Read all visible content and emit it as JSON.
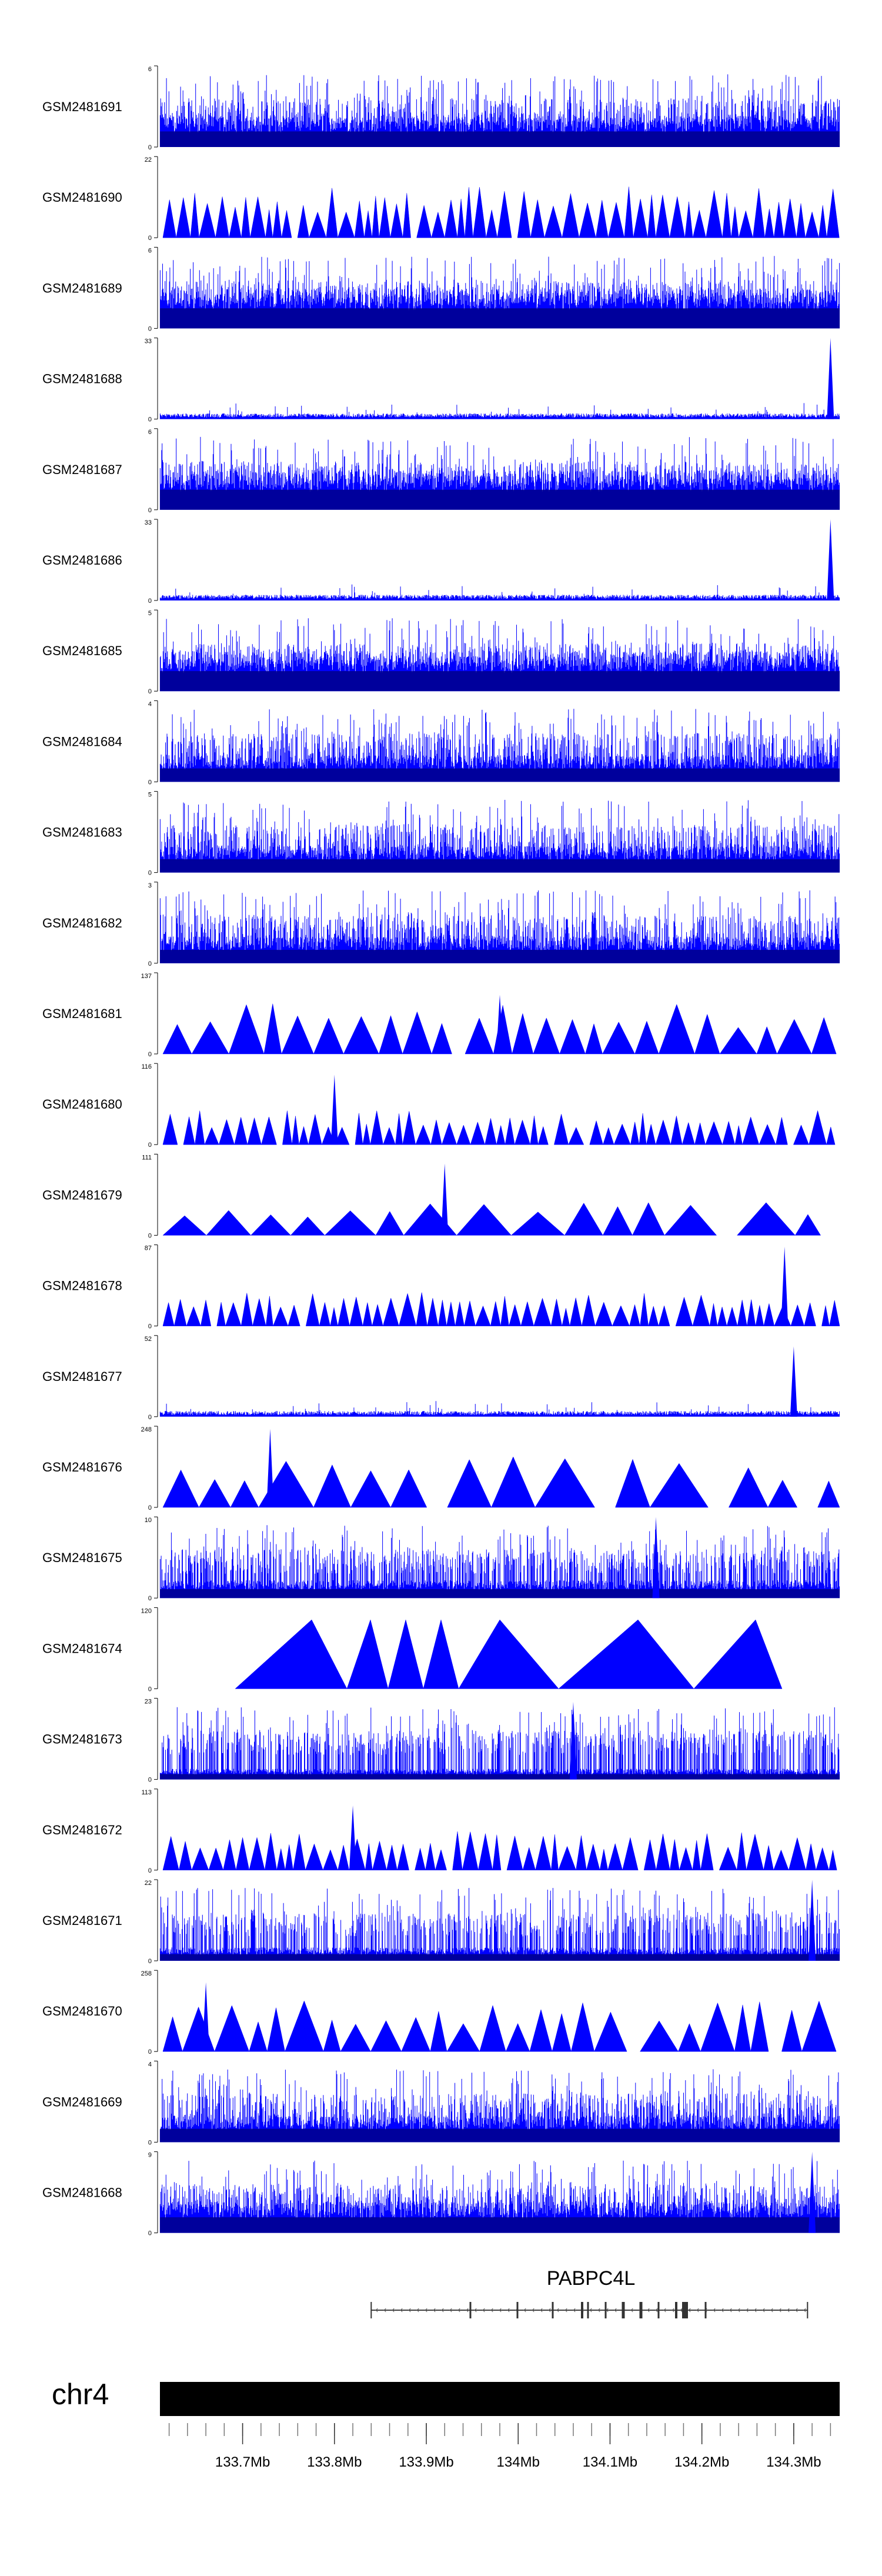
{
  "chart_data": {
    "type": "area",
    "x_range_bp": [
      133610000,
      134350000
    ],
    "tracks": [
      {
        "name": "GSM2481691",
        "ymax": 6,
        "style": "spiky",
        "base": 0.35,
        "peak": null
      },
      {
        "name": "GSM2481690",
        "ymax": 22,
        "style": "tri-dense",
        "base": 0.45,
        "peak": null
      },
      {
        "name": "GSM2481689",
        "ymax": 6,
        "style": "spiky",
        "base": 0.45,
        "peak": null
      },
      {
        "name": "GSM2481688",
        "ymax": 33,
        "style": "low",
        "base": 0.06,
        "peak": {
          "x_bp": 134340000,
          "value": 33
        }
      },
      {
        "name": "GSM2481687",
        "ymax": 6,
        "style": "spiky",
        "base": 0.45,
        "peak": null
      },
      {
        "name": "GSM2481686",
        "ymax": 33,
        "style": "low",
        "base": 0.06,
        "peak": {
          "x_bp": 134340000,
          "value": 33
        }
      },
      {
        "name": "GSM2481685",
        "ymax": 5,
        "style": "spiky",
        "base": 0.45,
        "peak": null
      },
      {
        "name": "GSM2481684",
        "ymax": 4,
        "style": "spiky",
        "base": 0.3,
        "peak": null
      },
      {
        "name": "GSM2481683",
        "ymax": 5,
        "style": "spiky",
        "base": 0.3,
        "peak": null
      },
      {
        "name": "GSM2481682",
        "ymax": 3,
        "style": "spiky",
        "base": 0.3,
        "peak": null
      },
      {
        "name": "GSM2481681",
        "ymax": 137,
        "style": "tri",
        "base": 0.45,
        "peak": {
          "x_bp": 133980000,
          "value": 100
        }
      },
      {
        "name": "GSM2481680",
        "ymax": 116,
        "style": "tri-dense",
        "base": 0.3,
        "peak": {
          "x_bp": 133800000,
          "value": 100
        }
      },
      {
        "name": "GSM2481679",
        "ymax": 111,
        "style": "tri-sparse",
        "base": 0.3,
        "peak": {
          "x_bp": 133920000,
          "value": 98
        }
      },
      {
        "name": "GSM2481678",
        "ymax": 87,
        "style": "tri-dense",
        "base": 0.3,
        "peak": {
          "x_bp": 134290000,
          "value": 85
        }
      },
      {
        "name": "GSM2481677",
        "ymax": 52,
        "style": "low",
        "base": 0.06,
        "peak": {
          "x_bp": 134300000,
          "value": 45
        }
      },
      {
        "name": "GSM2481676",
        "ymax": 248,
        "style": "tri-sparse",
        "base": 0.45,
        "peak": {
          "x_bp": 133730000,
          "value": 240
        }
      },
      {
        "name": "GSM2481675",
        "ymax": 10,
        "style": "spiky",
        "base": 0.2,
        "peak": {
          "x_bp": 134150000,
          "value": 10
        }
      },
      {
        "name": "GSM2481674",
        "ymax": 120,
        "style": "tri-big",
        "base": 0.0,
        "peak": null
      },
      {
        "name": "GSM2481673",
        "ymax": 23,
        "style": "spiky",
        "base": 0.12,
        "peak": {
          "x_bp": 134060000,
          "value": 22
        }
      },
      {
        "name": "GSM2481672",
        "ymax": 113,
        "style": "tri-dense",
        "base": 0.35,
        "peak": {
          "x_bp": 133820000,
          "value": 90
        }
      },
      {
        "name": "GSM2481671",
        "ymax": 22,
        "style": "spiky",
        "base": 0.15,
        "peak": {
          "x_bp": 134320000,
          "value": 22
        }
      },
      {
        "name": "GSM2481670",
        "ymax": 258,
        "style": "tri",
        "base": 0.45,
        "peak": {
          "x_bp": 133660000,
          "value": 220
        }
      },
      {
        "name": "GSM2481669",
        "ymax": 4,
        "style": "spiky",
        "base": 0.3,
        "peak": null
      },
      {
        "name": "GSM2481668",
        "ymax": 9,
        "style": "spiky",
        "base": 0.35,
        "peak": {
          "x_bp": 134320000,
          "value": 9
        }
      }
    ],
    "gene": {
      "name": "PABPC4L",
      "start_bp": 133840000,
      "end_bp": 134315000,
      "strand": "-"
    },
    "chromosome": "chr4",
    "x_ticks": [
      {
        "pos_bp": 133700000,
        "label": "133.7Mb"
      },
      {
        "pos_bp": 133800000,
        "label": "133.8Mb"
      },
      {
        "pos_bp": 133900000,
        "label": "133.9Mb"
      },
      {
        "pos_bp": 134000000,
        "label": "134Mb"
      },
      {
        "pos_bp": 134100000,
        "label": "134.1Mb"
      },
      {
        "pos_bp": 134200000,
        "label": "134.2Mb"
      },
      {
        "pos_bp": 134300000,
        "label": "134.3Mb"
      }
    ],
    "minor_tick_step_bp": 20000,
    "colors": {
      "fill": "#0000ff",
      "dense": "#00008b",
      "chrom_bar": "#000000",
      "gene": "#000000"
    }
  }
}
